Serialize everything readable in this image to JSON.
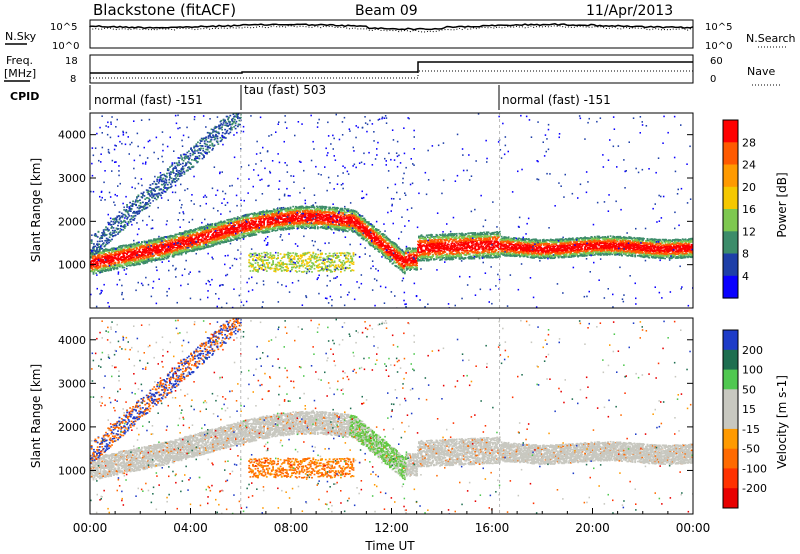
{
  "header": {
    "station": "Blackstone (fitACF)",
    "beam": "Beam 09",
    "date": "11/Apr/2013"
  },
  "panels": {
    "nsky": {
      "label": "N.Sky",
      "right_label": "N.Search",
      "left_ticks": [
        "10^5",
        "10^0"
      ],
      "right_ticks": [
        "10^5",
        "10^0"
      ]
    },
    "freq": {
      "label_line1": "Freq.",
      "label_line2": "[MHz]",
      "right_label": "Nave",
      "left_ticks": [
        "18",
        "8"
      ],
      "right_ticks": [
        "60",
        "0"
      ]
    },
    "cpid": {
      "label": "CPID",
      "segments": [
        {
          "label": "normal (fast) -151",
          "start_hour": 0
        },
        {
          "label": "tau (fast) 503",
          "start_hour": 6
        },
        {
          "label": "normal (fast) -151",
          "start_hour": 16.3
        }
      ]
    }
  },
  "chart_data": [
    {
      "type": "heatmap",
      "quantity": "Power",
      "ylabel": "Slant Range [km]",
      "ylim": [
        0,
        4500
      ],
      "yticks": [
        1000,
        2000,
        3000,
        4000
      ],
      "colorbar_label": "Power [dB]",
      "colorbar_ticks": [
        28,
        24,
        20,
        16,
        12,
        8,
        4
      ],
      "colorbar_colors": [
        "#ff0000",
        "#ff5a00",
        "#ff9a00",
        "#f5c800",
        "#7ec850",
        "#3c8c6a",
        "#1e3fa8",
        "#0a00ff"
      ]
    },
    {
      "type": "heatmap",
      "quantity": "Velocity",
      "ylabel": "Slant Range [km]",
      "ylim": [
        0,
        4500
      ],
      "yticks": [
        1000,
        2000,
        3000,
        4000
      ],
      "colorbar_label": "Velocity [m s-1]",
      "colorbar_ticks": [
        200,
        100,
        50,
        15,
        -15,
        -50,
        -100,
        -200
      ],
      "colorbar_colors": [
        "#1e3cc8",
        "#1e6e50",
        "#50c850",
        "#c8c8c0",
        "#c8c8c0",
        "#ff9a00",
        "#ff6a00",
        "#ff3200",
        "#e80000"
      ]
    }
  ],
  "x_axis": {
    "label": "Time UT",
    "ticks": [
      "00:00",
      "04:00",
      "08:00",
      "12:00",
      "16:00",
      "20:00",
      "00:00"
    ]
  },
  "colors": {
    "power_band": "#ff2000",
    "velocity_band": "#c8c8c0",
    "velocity_down": "#60c840"
  }
}
